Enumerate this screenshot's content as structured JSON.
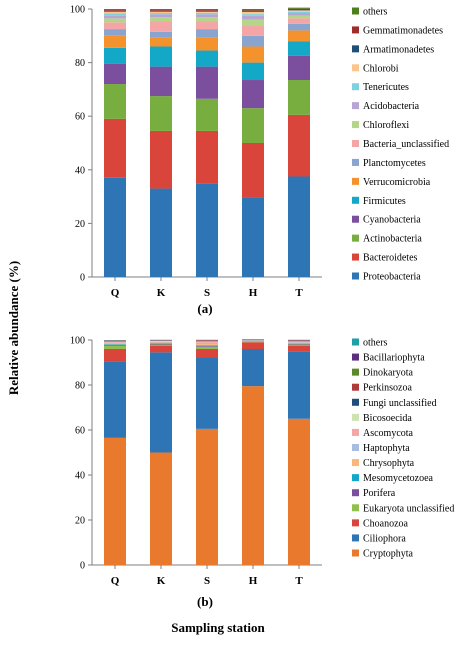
{
  "ylabel": "Relative abundance (%)",
  "xlabel": "Sampling station",
  "chart_data": [
    {
      "type": "bar",
      "stacked": true,
      "panel_label": "(a)",
      "categories": [
        "Q",
        "K",
        "S",
        "H",
        "T"
      ],
      "ylim": [
        0,
        100
      ],
      "yticks": [
        0,
        20,
        40,
        60,
        80,
        100
      ],
      "grid": false,
      "legend_position": "right",
      "series": [
        {
          "name": "Proteobacteria",
          "color": "#2e75b6",
          "values": [
            37,
            33,
            35,
            29.5,
            37.5
          ]
        },
        {
          "name": "Bacteroidetes",
          "color": "#d9453a",
          "values": [
            22,
            21.5,
            19.5,
            20.5,
            23
          ]
        },
        {
          "name": "Actinobacteria",
          "color": "#77ae3f",
          "values": [
            13,
            13,
            12,
            13,
            13
          ]
        },
        {
          "name": "Cyanobacteria",
          "color": "#7b4f9d",
          "values": [
            7.5,
            11,
            12,
            10.5,
            9
          ]
        },
        {
          "name": "Firmicutes",
          "color": "#13a7c8",
          "values": [
            6,
            7.5,
            6,
            6.5,
            5.5
          ]
        },
        {
          "name": "Verrucomicrobia",
          "color": "#f4922d",
          "values": [
            4.5,
            3.5,
            5,
            6,
            4
          ]
        },
        {
          "name": "Planctomycetes",
          "color": "#8aa4d0",
          "values": [
            2.5,
            2,
            3,
            4,
            2.5
          ]
        },
        {
          "name": "Bacteria_unclassified",
          "color": "#f4a6a6",
          "values": [
            2.5,
            4,
            3,
            4,
            2
          ]
        },
        {
          "name": "Chloroflexi",
          "color": "#b5d68a",
          "values": [
            1.5,
            1.5,
            1.5,
            2,
            1
          ]
        },
        {
          "name": "Acidobacteria",
          "color": "#b9a5d4",
          "values": [
            1,
            1,
            1,
            1.5,
            1
          ]
        },
        {
          "name": "Tenericutes",
          "color": "#7fd1df",
          "values": [
            0.8,
            0.5,
            0.6,
            0.6,
            0.5
          ]
        },
        {
          "name": "Chlorobi",
          "color": "#fbc58b",
          "values": [
            0.7,
            0.5,
            0.4,
            0.8,
            0.5
          ]
        },
        {
          "name": "Armatimonadetes",
          "color": "#1f4e79",
          "values": [
            0.3,
            0.3,
            0.3,
            0.3,
            0.3
          ]
        },
        {
          "name": "Gemmatimonadetes",
          "color": "#a02b2b",
          "values": [
            0.3,
            0.3,
            0.3,
            0.3,
            0.3
          ]
        },
        {
          "name": "others",
          "color": "#4d7f1e",
          "values": [
            0.4,
            0.4,
            0.4,
            0.5,
            0.4
          ]
        }
      ]
    },
    {
      "type": "bar",
      "stacked": true,
      "panel_label": "(b)",
      "categories": [
        "Q",
        "K",
        "S",
        "H",
        "T"
      ],
      "ylim": [
        0,
        100
      ],
      "yticks": [
        0,
        20,
        40,
        60,
        80,
        100
      ],
      "grid": false,
      "legend_position": "right",
      "series": [
        {
          "name": "Cryptophyta",
          "color": "#e97a2d",
          "values": [
            56.5,
            50,
            60.5,
            79.5,
            65
          ]
        },
        {
          "name": "Ciliophora",
          "color": "#2e75b6",
          "values": [
            34,
            44.5,
            31.5,
            16.5,
            30
          ]
        },
        {
          "name": "Choanozoa",
          "color": "#d9453a",
          "values": [
            5.5,
            3,
            4,
            3,
            2.5
          ]
        },
        {
          "name": "Eukaryota unclassified",
          "color": "#8fbf4e",
          "values": [
            1.5,
            0.5,
            1,
            0.3,
            0.5
          ]
        },
        {
          "name": "Porifera",
          "color": "#7b4f9d",
          "values": [
            0.3,
            0.3,
            0.3,
            0.1,
            0.2
          ]
        },
        {
          "name": "Mesomycetozoea",
          "color": "#13a7c8",
          "values": [
            0.3,
            0.3,
            0.3,
            0.1,
            0.2
          ]
        },
        {
          "name": "Chrysophyta",
          "color": "#f9b77a",
          "values": [
            0.4,
            0.3,
            0.6,
            0.1,
            0.3
          ]
        },
        {
          "name": "Haptophyta",
          "color": "#a9bde0",
          "values": [
            0.3,
            0.3,
            0.5,
            0.1,
            0.3
          ]
        },
        {
          "name": "Ascomycota",
          "color": "#f4a6a6",
          "values": [
            0.3,
            0.2,
            0.4,
            0.1,
            0.2
          ]
        },
        {
          "name": "Bicosoecida",
          "color": "#cfe3b0",
          "values": [
            0.2,
            0.2,
            0.3,
            0.1,
            0.2
          ]
        },
        {
          "name": "Fungi unclassified",
          "color": "#1f4e79",
          "values": [
            0.2,
            0.1,
            0.2,
            0.1,
            0.2
          ]
        },
        {
          "name": "Perkinsozoa",
          "color": "#b03a3a",
          "values": [
            0.2,
            0.1,
            0.2,
            0.1,
            0.2
          ]
        },
        {
          "name": "Dinokaryota",
          "color": "#5a8a2a",
          "values": [
            0.1,
            0.1,
            0.1,
            0.1,
            0.1
          ]
        },
        {
          "name": "Bacillariophyta",
          "color": "#5b2e80",
          "values": [
            0.1,
            0.1,
            0.1,
            0.1,
            0.1
          ]
        },
        {
          "name": "others",
          "color": "#1fa0a8",
          "values": [
            0.1,
            0.1,
            0.1,
            0.1,
            0.1
          ]
        }
      ]
    }
  ]
}
